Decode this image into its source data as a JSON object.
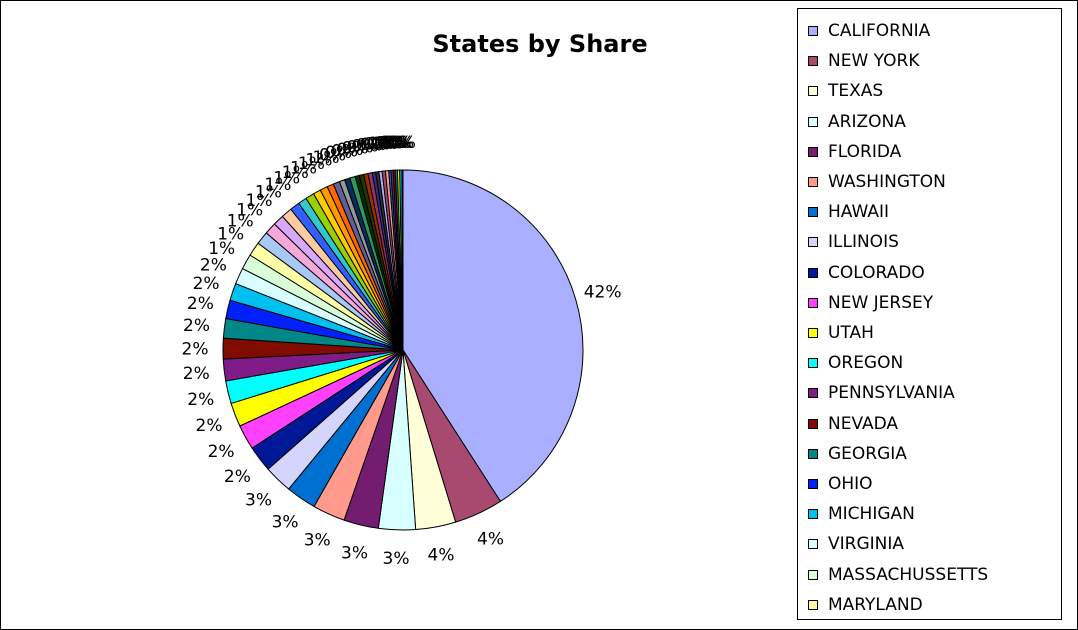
{
  "chart_data": {
    "type": "pie",
    "title": "States by Share",
    "legend_position": "right",
    "slices": [
      {
        "label": "CALIFORNIA",
        "value": 42,
        "display": "42%",
        "color": "#aab0ff"
      },
      {
        "label": "NEW YORK",
        "value": 4.5,
        "display": "4%",
        "color": "#a84a70"
      },
      {
        "label": "TEXAS",
        "value": 3.7,
        "display": "4%",
        "color": "#ffffd8"
      },
      {
        "label": "ARIZONA",
        "value": 3.4,
        "display": "3%",
        "color": "#d8ffff"
      },
      {
        "label": "FLORIDA",
        "value": 3.2,
        "display": "3%",
        "color": "#741c70"
      },
      {
        "label": "WASHINGTON",
        "value": 3.0,
        "display": "3%",
        "color": "#ff9a8c"
      },
      {
        "label": "HAWAII",
        "value": 2.8,
        "display": "3%",
        "color": "#0070d0"
      },
      {
        "label": "ILLINOIS",
        "value": 2.6,
        "display": "3%",
        "color": "#d4d4fc"
      },
      {
        "label": "COLORADO",
        "value": 2.4,
        "display": "2%",
        "color": "#001898"
      },
      {
        "label": "NEW JERSEY",
        "value": 2.3,
        "display": "2%",
        "color": "#ff40ff"
      },
      {
        "label": "UTAH",
        "value": 2.2,
        "display": "2%",
        "color": "#ffff00"
      },
      {
        "label": "OREGON",
        "value": 2.1,
        "display": "2%",
        "color": "#00ffff"
      },
      {
        "label": "PENNSYLVANIA",
        "value": 2.0,
        "display": "2%",
        "color": "#801c88"
      },
      {
        "label": "NEVADA",
        "value": 1.9,
        "display": "2%",
        "color": "#800c00"
      },
      {
        "label": "GEORGIA",
        "value": 1.8,
        "display": "2%",
        "color": "#008888"
      },
      {
        "label": "OHIO",
        "value": 1.7,
        "display": "2%",
        "color": "#0020ff"
      },
      {
        "label": "MICHIGAN",
        "value": 1.6,
        "display": "2%",
        "color": "#00c0f0"
      },
      {
        "label": "VIRGINIA",
        "value": 1.5,
        "display": "2%",
        "color": "#d8ffff"
      },
      {
        "label": "MASSACHUSSETTS",
        "value": 1.4,
        "display": "1%",
        "color": "#d8ffd8"
      },
      {
        "label": "MARYLAND",
        "value": 1.3,
        "display": "1%",
        "color": "#ffffa8"
      }
    ],
    "other_slices": [
      {
        "value": 1.2,
        "display": "1%",
        "color": "#a8c8f8"
      },
      {
        "value": 1.1,
        "display": "1%",
        "color": "#f8a8d8"
      },
      {
        "value": 1.0,
        "display": "1%",
        "color": "#d8a8ff"
      },
      {
        "value": 1.0,
        "display": "1%",
        "color": "#ffcca0"
      },
      {
        "value": 0.9,
        "display": "1%",
        "color": "#3060ff"
      },
      {
        "value": 0.8,
        "display": "1%",
        "color": "#30c8c8"
      },
      {
        "value": 0.8,
        "display": "1%",
        "color": "#98d000"
      },
      {
        "value": 0.7,
        "display": "1%",
        "color": "#ffcc00"
      },
      {
        "value": 0.7,
        "display": "1%",
        "color": "#ff9900"
      },
      {
        "value": 0.6,
        "display": "1%",
        "color": "#ff6600"
      },
      {
        "value": 0.6,
        "display": "1%",
        "color": "#606098"
      },
      {
        "value": 0.5,
        "display": "0%",
        "color": "#989898"
      },
      {
        "value": 0.5,
        "display": "0%",
        "color": "#003060"
      },
      {
        "value": 0.5,
        "display": "0%",
        "color": "#30985f"
      },
      {
        "value": 0.4,
        "display": "0%",
        "color": "#003000"
      },
      {
        "value": 0.4,
        "display": "0%",
        "color": "#303000"
      },
      {
        "value": 0.4,
        "display": "0%",
        "color": "#983000"
      },
      {
        "value": 0.4,
        "display": "0%",
        "color": "#983060"
      },
      {
        "value": 0.3,
        "display": "0%",
        "color": "#303098"
      },
      {
        "value": 0.3,
        "display": "0%",
        "color": "#303030"
      },
      {
        "value": 0.3,
        "display": "0%",
        "color": "#aab0ff"
      },
      {
        "value": 0.3,
        "display": "0%",
        "color": "#a84a70"
      },
      {
        "value": 0.3,
        "display": "0%",
        "color": "#ff9a8c"
      },
      {
        "value": 0.2,
        "display": "0%",
        "color": "#0070d0"
      },
      {
        "value": 0.2,
        "display": "0%",
        "color": "#801c88"
      },
      {
        "value": 0.2,
        "display": "0%",
        "color": "#800c00"
      },
      {
        "value": 0.2,
        "display": "0%",
        "color": "#008888"
      },
      {
        "value": 0.2,
        "display": "0%",
        "color": "#ffff00"
      },
      {
        "value": 0.2,
        "display": "0%",
        "color": "#00c0f0"
      },
      {
        "value": 0.1,
        "display": "0%",
        "color": "#ff40ff"
      }
    ]
  }
}
